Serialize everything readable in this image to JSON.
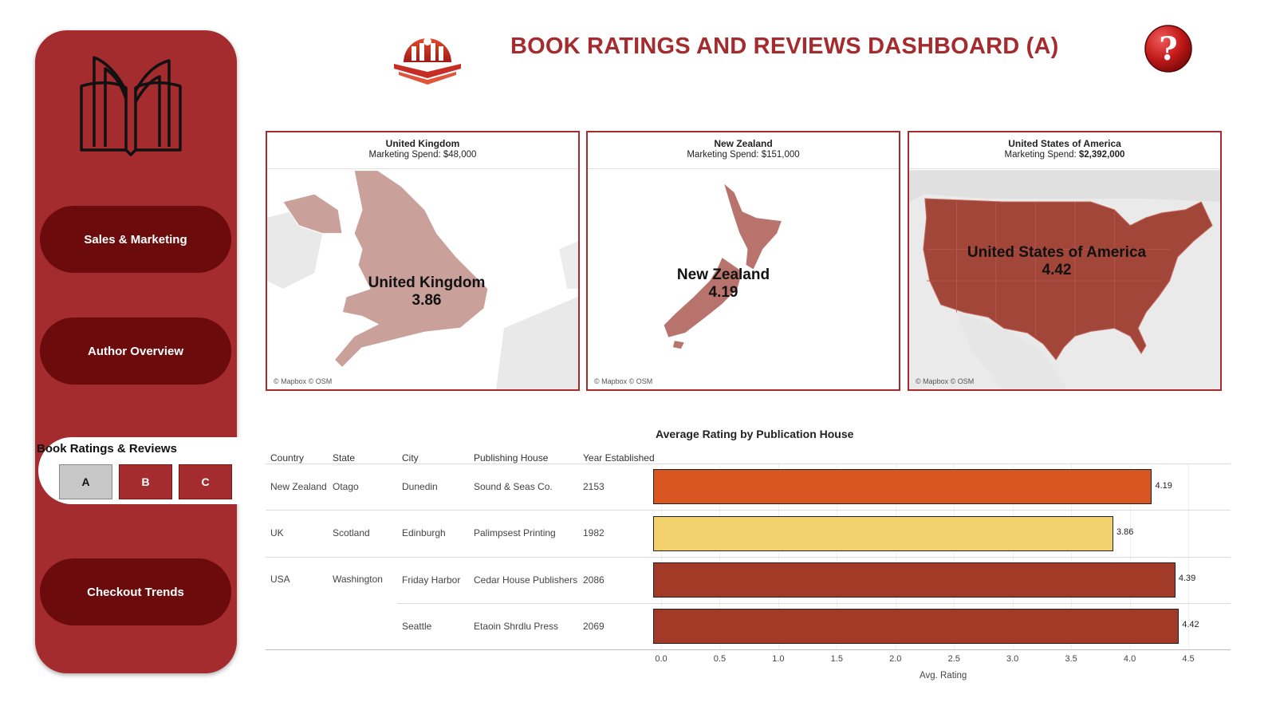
{
  "header": {
    "title": "BOOK RATINGS AND REVIEWS DASHBOARD (A)"
  },
  "icons": {
    "logo": "library-logo-icon",
    "help": "help-question-icon",
    "book": "open-book-icon"
  },
  "sidebar": {
    "nav": [
      {
        "label": "Sales & Marketing"
      },
      {
        "label": "Author Overview"
      },
      {
        "label": "Checkout Trends"
      }
    ],
    "active_group": {
      "label": "Book Ratings & Reviews",
      "tabs": [
        {
          "label": "A",
          "selected": true
        },
        {
          "label": "B",
          "selected": false
        },
        {
          "label": "C",
          "selected": false
        }
      ]
    }
  },
  "maps": [
    {
      "name": "United Kingdom",
      "spend_label": "Marketing Spend: ",
      "spend_value": "$48,000",
      "rating": "3.86",
      "attribution": "© Mapbox © OSM",
      "fill": "#c9a09a"
    },
    {
      "name": "New Zealand",
      "spend_label": "Marketing Spend: ",
      "spend_value": "$151,000",
      "rating": "4.19",
      "attribution": "© Mapbox © OSM",
      "fill": "#b8736c"
    },
    {
      "name": "United States of America",
      "spend_label": "Marketing Spend: ",
      "spend_value": "$2,392,000",
      "rating": "4.42",
      "attribution": "© Mapbox © OSM",
      "fill": "#a3463a"
    }
  ],
  "table": {
    "title": "Average Rating by Publication House",
    "columns": [
      "Country",
      "State",
      "City",
      "Publishing House",
      "Year Established"
    ],
    "rows": [
      {
        "country": "New Zealand",
        "state": "Otago",
        "city": "Dunedin",
        "house": "Sound & Seas Co.",
        "year": "2153",
        "rating": 4.19,
        "rating_label": "4.19",
        "color": "#d95522"
      },
      {
        "country": "UK",
        "state": "Scotland",
        "city": "Edinburgh",
        "house": "Palimpsest Printing",
        "year": "1982",
        "rating": 3.86,
        "rating_label": "3.86",
        "color": "#f2d06b"
      },
      {
        "country": "USA",
        "state": "Washington",
        "city": "Friday Harbor",
        "house": "Cedar House Publishers",
        "year": "2086",
        "rating": 4.39,
        "rating_label": "4.39",
        "color": "#a13a26"
      },
      {
        "country": "",
        "state": "",
        "city": "Seattle",
        "house": "Etaoin Shrdlu Press",
        "year": "2069",
        "rating": 4.42,
        "rating_label": "4.42",
        "color": "#a13a26"
      }
    ]
  },
  "chart_data": {
    "type": "bar",
    "orientation": "horizontal",
    "title": "Average Rating by Publication House",
    "categories": [
      "Sound & Seas Co.",
      "Palimpsest Printing",
      "Cedar House Publishers",
      "Etaoin Shrdlu Press"
    ],
    "values": [
      4.19,
      3.86,
      4.39,
      4.42
    ],
    "xlabel": "Avg. Rating",
    "xlim": [
      0,
      4.5
    ],
    "ticks": [
      "0.0",
      "0.5",
      "1.0",
      "1.5",
      "2.0",
      "2.5",
      "3.0",
      "3.5",
      "4.0",
      "4.5"
    ],
    "grid": true
  }
}
